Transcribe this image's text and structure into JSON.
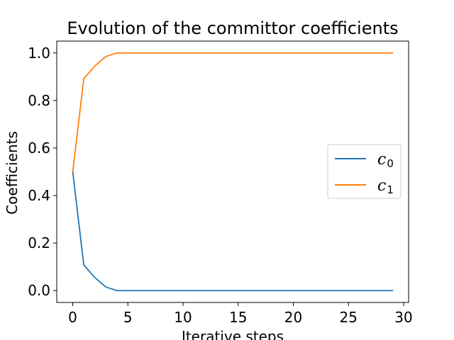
{
  "chart_data": {
    "type": "line",
    "title": "Evolution of the committor coefficients",
    "xlabel": "Iterative steps",
    "ylabel": "Coefficients",
    "xlim": [
      -1.45,
      30.45
    ],
    "ylim": [
      -0.05,
      1.05
    ],
    "x_ticks": [
      0,
      5,
      10,
      15,
      20,
      25,
      30
    ],
    "x_tick_labels": [
      "0",
      "5",
      "10",
      "15",
      "20",
      "25",
      "30"
    ],
    "y_ticks": [
      0.0,
      0.2,
      0.4,
      0.6,
      0.8,
      1.0
    ],
    "y_tick_labels": [
      "0.0",
      "0.2",
      "0.4",
      "0.6",
      "0.8",
      "1.0"
    ],
    "grid": false,
    "legend_position": "center-right",
    "x": [
      0,
      1,
      2,
      3,
      4,
      5,
      6,
      7,
      8,
      9,
      10,
      11,
      12,
      13,
      14,
      15,
      16,
      17,
      18,
      19,
      20,
      21,
      22,
      23,
      24,
      25,
      26,
      27,
      28,
      29
    ],
    "series": [
      {
        "name": "c",
        "name_subscript": "0",
        "color": "#1f77b4",
        "values": [
          0.5,
          0.108,
          0.055,
          0.015,
          0.0,
          0.0,
          0.0,
          0.0,
          0.0,
          0.0,
          0.0,
          0.0,
          0.0,
          0.0,
          0.0,
          0.0,
          0.0,
          0.0,
          0.0,
          0.0,
          0.0,
          0.0,
          0.0,
          0.0,
          0.0,
          0.0,
          0.0,
          0.0,
          0.0,
          0.0
        ]
      },
      {
        "name": "c",
        "name_subscript": "1",
        "color": "#ff7f0e",
        "values": [
          0.5,
          0.892,
          0.945,
          0.985,
          1.0,
          1.0,
          1.0,
          1.0,
          1.0,
          1.0,
          1.0,
          1.0,
          1.0,
          1.0,
          1.0,
          1.0,
          1.0,
          1.0,
          1.0,
          1.0,
          1.0,
          1.0,
          1.0,
          1.0,
          1.0,
          1.0,
          1.0,
          1.0,
          1.0,
          1.0
        ]
      }
    ]
  }
}
